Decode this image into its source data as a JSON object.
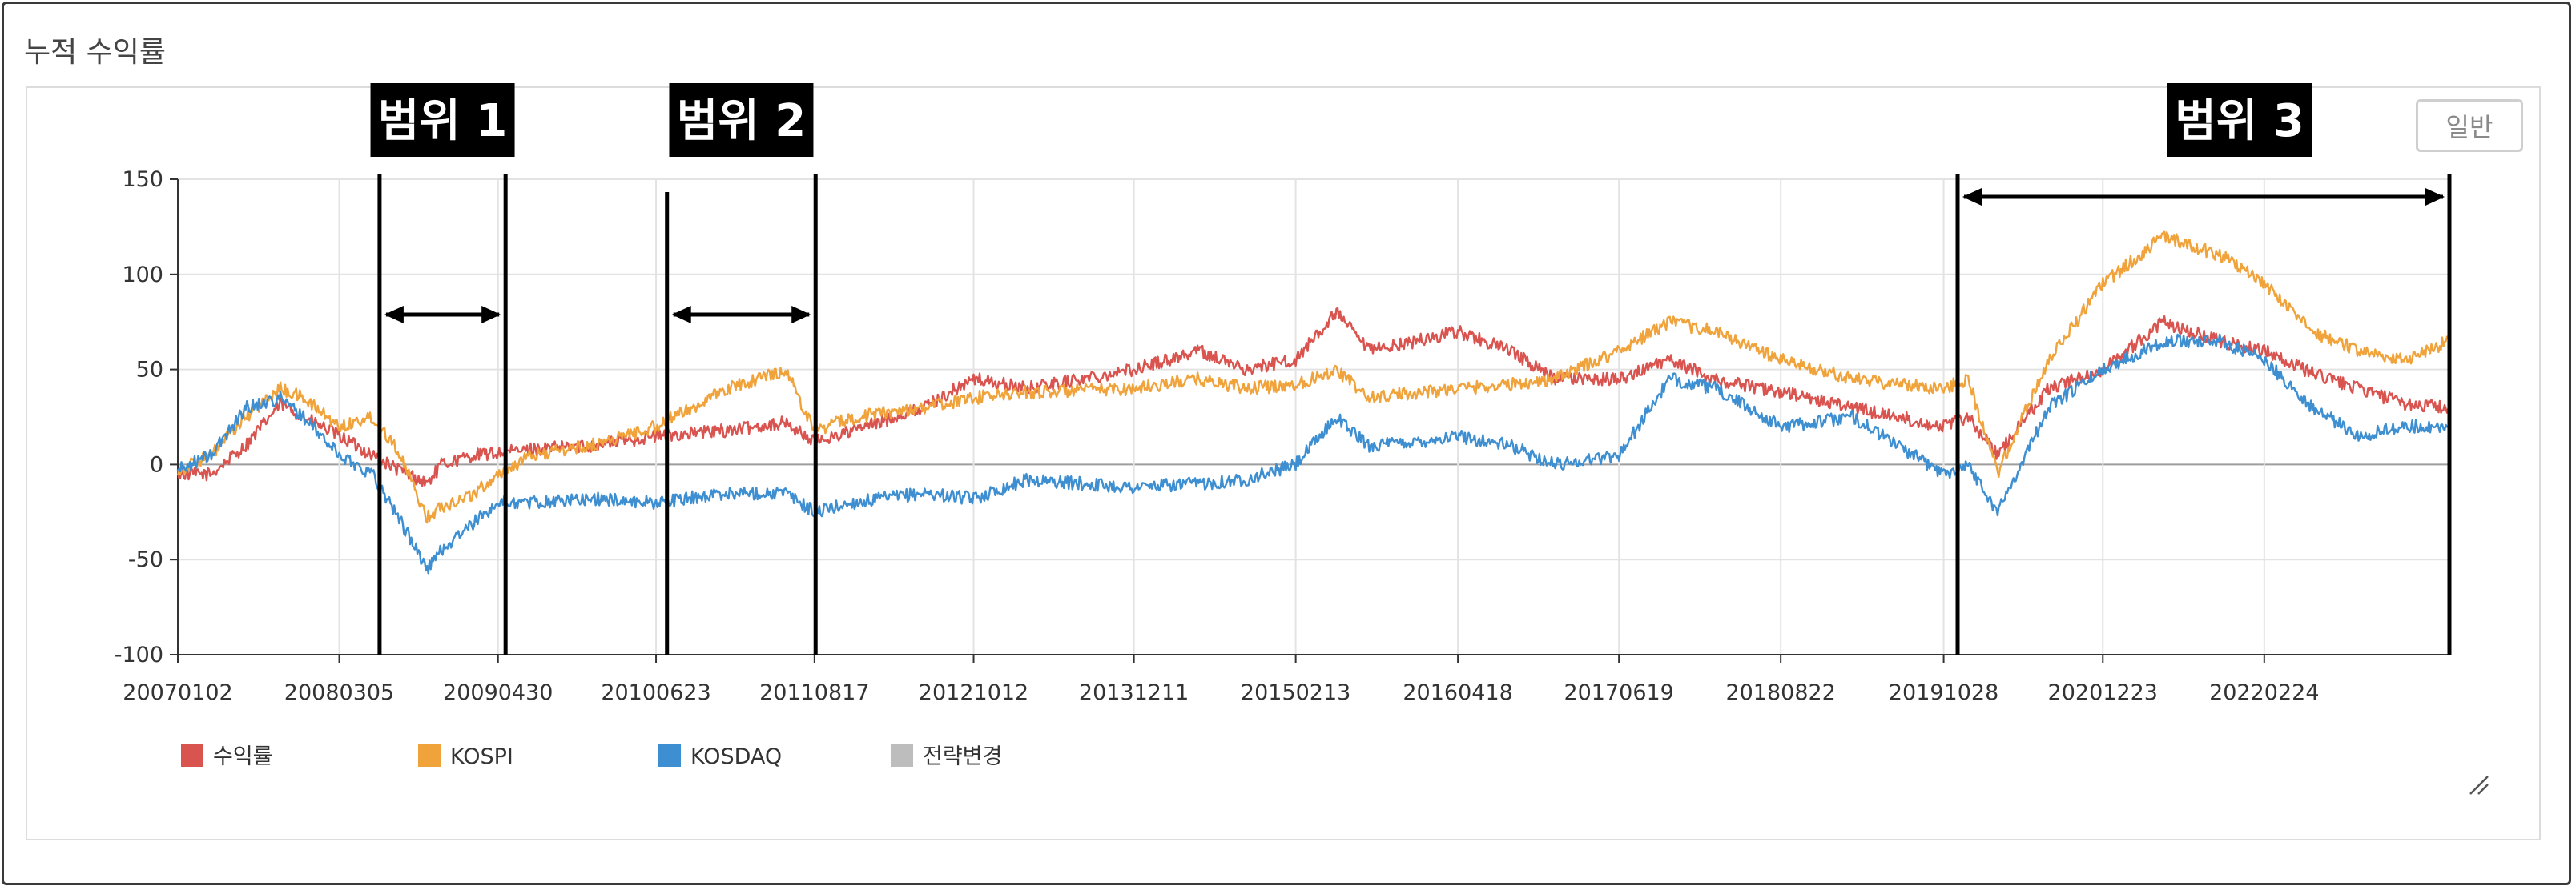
{
  "section_title": "누적 수익률",
  "mode_button_label": "일반",
  "colors": {
    "returns": "#d9534f",
    "kospi": "#f0a33b",
    "kosdaq": "#3d8fd1",
    "strategy_change": "#bdbdbd",
    "zero_line": "#9e9e9e",
    "grid": "#e3e3e3",
    "annotation": "#000000"
  },
  "chart_data": {
    "type": "line",
    "title": "",
    "xlabel": "",
    "ylabel": "",
    "ylim": [
      -100,
      150
    ],
    "y_ticks": [
      150,
      100,
      50,
      0,
      -50,
      -100
    ],
    "x_tick_labels": [
      "20070102",
      "20080305",
      "20090430",
      "20100623",
      "20110817",
      "20121012",
      "20131211",
      "20150213",
      "20160418",
      "20170619",
      "20180822",
      "20191028",
      "20201223",
      "20220224"
    ],
    "x_range_dates": [
      "20070102",
      "20230630"
    ],
    "grid": true,
    "legend_position": "bottom-left",
    "legend": [
      "수익률",
      "KOSPI",
      "KOSDAQ",
      "전략변경"
    ],
    "series": [
      {
        "name": "수익률",
        "key": "returns",
        "points": [
          [
            "20070102",
            -5
          ],
          [
            "20070401",
            -5
          ],
          [
            "20070701",
            10
          ],
          [
            "20071001",
            32
          ],
          [
            "20071201",
            25
          ],
          [
            "20080305",
            15
          ],
          [
            "20080601",
            5
          ],
          [
            "20080801",
            -2
          ],
          [
            "20081024",
            -10
          ],
          [
            "20081201",
            0
          ],
          [
            "20090301",
            5
          ],
          [
            "20090430",
            6
          ],
          [
            "20090801",
            8
          ],
          [
            "20100101",
            10
          ],
          [
            "20100623",
            15
          ],
          [
            "20110101",
            18
          ],
          [
            "20110601",
            22
          ],
          [
            "20110817",
            12
          ],
          [
            "20111201",
            18
          ],
          [
            "20120601",
            30
          ],
          [
            "20121012",
            45
          ],
          [
            "20130301",
            40
          ],
          [
            "20131211",
            50
          ],
          [
            "20140601",
            60
          ],
          [
            "20141001",
            50
          ],
          [
            "20150213",
            55
          ],
          [
            "20150601",
            80
          ],
          [
            "20150824",
            60
          ],
          [
            "20160101",
            65
          ],
          [
            "20160418",
            70
          ],
          [
            "20160901",
            60
          ],
          [
            "20170101",
            45
          ],
          [
            "20170619",
            45
          ],
          [
            "20171101",
            55
          ],
          [
            "20180301",
            45
          ],
          [
            "20180822",
            38
          ],
          [
            "20190301",
            30
          ],
          [
            "20191028",
            20
          ],
          [
            "20200101",
            25
          ],
          [
            "20200319",
            5
          ],
          [
            "20200801",
            40
          ],
          [
            "20201223",
            50
          ],
          [
            "20210601",
            75
          ],
          [
            "20211101",
            65
          ],
          [
            "20220224",
            60
          ],
          [
            "20220701",
            48
          ],
          [
            "20221101",
            40
          ],
          [
            "20230301",
            32
          ],
          [
            "20230630",
            30
          ]
        ]
      },
      {
        "name": "KOSPI",
        "key": "kospi",
        "points": [
          [
            "20070102",
            -3
          ],
          [
            "20070401",
            5
          ],
          [
            "20070701",
            25
          ],
          [
            "20071001",
            40
          ],
          [
            "20071201",
            35
          ],
          [
            "20080305",
            20
          ],
          [
            "20080601",
            25
          ],
          [
            "20080801",
            10
          ],
          [
            "20081024",
            -28
          ],
          [
            "20081201",
            -22
          ],
          [
            "20090301",
            -15
          ],
          [
            "20090430",
            -5
          ],
          [
            "20090801",
            5
          ],
          [
            "20100101",
            10
          ],
          [
            "20100623",
            20
          ],
          [
            "20110101",
            40
          ],
          [
            "20110601",
            50
          ],
          [
            "20110817",
            18
          ],
          [
            "20111201",
            25
          ],
          [
            "20120601",
            30
          ],
          [
            "20121012",
            35
          ],
          [
            "20130301",
            38
          ],
          [
            "20131211",
            40
          ],
          [
            "20140601",
            45
          ],
          [
            "20141001",
            40
          ],
          [
            "20150213",
            42
          ],
          [
            "20150601",
            50
          ],
          [
            "20150824",
            35
          ],
          [
            "20160101",
            38
          ],
          [
            "20160418",
            40
          ],
          [
            "20160901",
            42
          ],
          [
            "20170101",
            45
          ],
          [
            "20170619",
            60
          ],
          [
            "20171101",
            75
          ],
          [
            "20180301",
            70
          ],
          [
            "20180822",
            55
          ],
          [
            "20190301",
            45
          ],
          [
            "20191028",
            40
          ],
          [
            "20200101",
            45
          ],
          [
            "20200319",
            -5
          ],
          [
            "20200801",
            55
          ],
          [
            "20201223",
            95
          ],
          [
            "20210601",
            120
          ],
          [
            "20211101",
            110
          ],
          [
            "20220224",
            95
          ],
          [
            "20220701",
            70
          ],
          [
            "20221101",
            60
          ],
          [
            "20230301",
            55
          ],
          [
            "20230630",
            65
          ]
        ]
      },
      {
        "name": "KOSDAQ",
        "key": "kosdaq",
        "points": [
          [
            "20070102",
            -3
          ],
          [
            "20070401",
            5
          ],
          [
            "20070701",
            30
          ],
          [
            "20071001",
            35
          ],
          [
            "20071201",
            25
          ],
          [
            "20080305",
            5
          ],
          [
            "20080601",
            -5
          ],
          [
            "20080801",
            -25
          ],
          [
            "20081024",
            -55
          ],
          [
            "20081201",
            -45
          ],
          [
            "20090301",
            -30
          ],
          [
            "20090430",
            -20
          ],
          [
            "20090801",
            -20
          ],
          [
            "20100101",
            -18
          ],
          [
            "20100623",
            -20
          ],
          [
            "20110101",
            -15
          ],
          [
            "20110601",
            -15
          ],
          [
            "20110817",
            -25
          ],
          [
            "20111201",
            -20
          ],
          [
            "20120601",
            -15
          ],
          [
            "20121012",
            -18
          ],
          [
            "20130301",
            -8
          ],
          [
            "20131211",
            -12
          ],
          [
            "20140601",
            -10
          ],
          [
            "20141001",
            -8
          ],
          [
            "20150213",
            0
          ],
          [
            "20150601",
            25
          ],
          [
            "20150824",
            10
          ],
          [
            "20160101",
            12
          ],
          [
            "20160418",
            15
          ],
          [
            "20160901",
            10
          ],
          [
            "20170101",
            0
          ],
          [
            "20170619",
            5
          ],
          [
            "20171101",
            45
          ],
          [
            "20180301",
            40
          ],
          [
            "20180822",
            20
          ],
          [
            "20190301",
            25
          ],
          [
            "20191028",
            -5
          ],
          [
            "20200101",
            0
          ],
          [
            "20200319",
            -25
          ],
          [
            "20200801",
            30
          ],
          [
            "20201223",
            50
          ],
          [
            "20210601",
            65
          ],
          [
            "20211101",
            65
          ],
          [
            "20220224",
            55
          ],
          [
            "20220701",
            30
          ],
          [
            "20221101",
            15
          ],
          [
            "20230301",
            20
          ],
          [
            "20230630",
            20
          ]
        ]
      }
    ],
    "annotations": [
      {
        "label": "범위 1",
        "start": "20080620",
        "end": "20090520"
      },
      {
        "label": "범위 2",
        "start": "20100722",
        "end": "20110820"
      },
      {
        "label": "범위 3",
        "start": "20191204",
        "end": "20230630"
      }
    ]
  }
}
